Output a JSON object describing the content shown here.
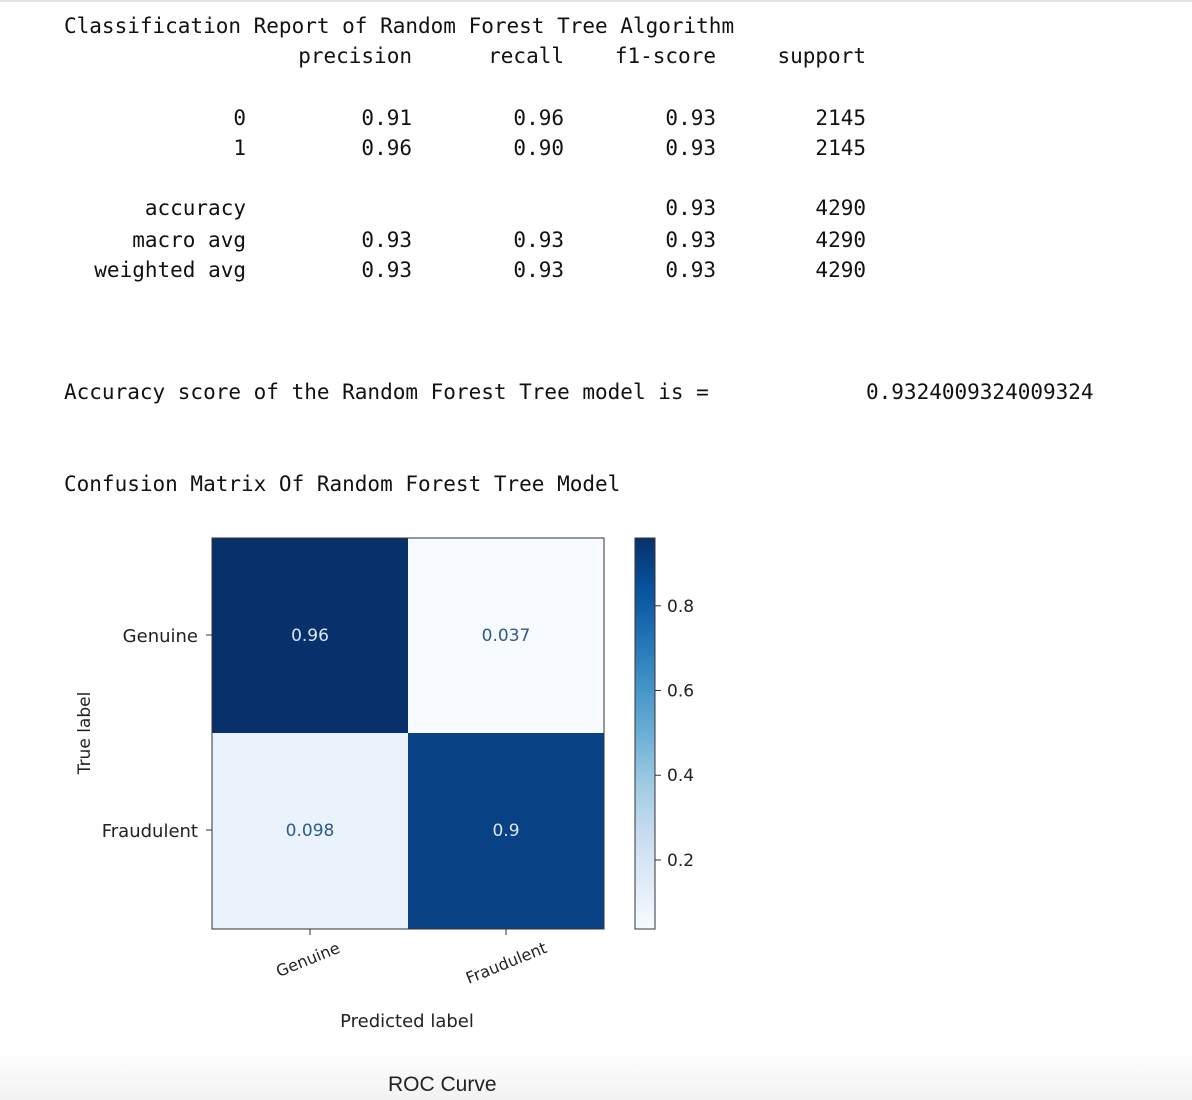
{
  "report": {
    "title": "Classification Report of Random Forest Tree Algorithm",
    "headers": [
      "precision",
      "recall",
      "f1-score",
      "support"
    ],
    "rows": [
      {
        "label": "0",
        "precision": "0.91",
        "recall": "0.96",
        "f1": "0.93",
        "support": "2145"
      },
      {
        "label": "1",
        "precision": "0.96",
        "recall": "0.90",
        "f1": "0.93",
        "support": "2145"
      }
    ],
    "accuracy": {
      "label": "accuracy",
      "f1": "0.93",
      "support": "4290"
    },
    "macro": {
      "label": "macro avg",
      "precision": "0.93",
      "recall": "0.93",
      "f1": "0.93",
      "support": "4290"
    },
    "weighted": {
      "label": "weighted avg",
      "precision": "0.93",
      "recall": "0.93",
      "f1": "0.93",
      "support": "4290"
    }
  },
  "accuracy_line": {
    "text": "Accuracy score of the Random Forest Tree model is =",
    "value": "0.9324009324009324"
  },
  "confusion_title": "Confusion Matrix Of Random Forest Tree Model",
  "chart_data": {
    "type": "heatmap",
    "row_labels": [
      "Genuine",
      "Fraudulent"
    ],
    "col_labels": [
      "Genuine",
      "Fraudulent"
    ],
    "values": [
      [
        0.96,
        0.037
      ],
      [
        0.098,
        0.9
      ]
    ],
    "cell_labels": [
      [
        "0.96",
        "0.037"
      ],
      [
        "0.098",
        "0.9"
      ]
    ],
    "xlabel": "Predicted label",
    "ylabel": "True label",
    "colorbar_ticks": [
      "0.2",
      "0.4",
      "0.6",
      "0.8"
    ],
    "colorbar_range": [
      0.037,
      0.96
    ],
    "colormap": [
      "#f7fbff",
      "#deebf7",
      "#c6dbef",
      "#9ecae1",
      "#6baed6",
      "#4292c6",
      "#2171b5",
      "#08519c",
      "#08306b"
    ]
  },
  "next_section": "ROC Curve"
}
